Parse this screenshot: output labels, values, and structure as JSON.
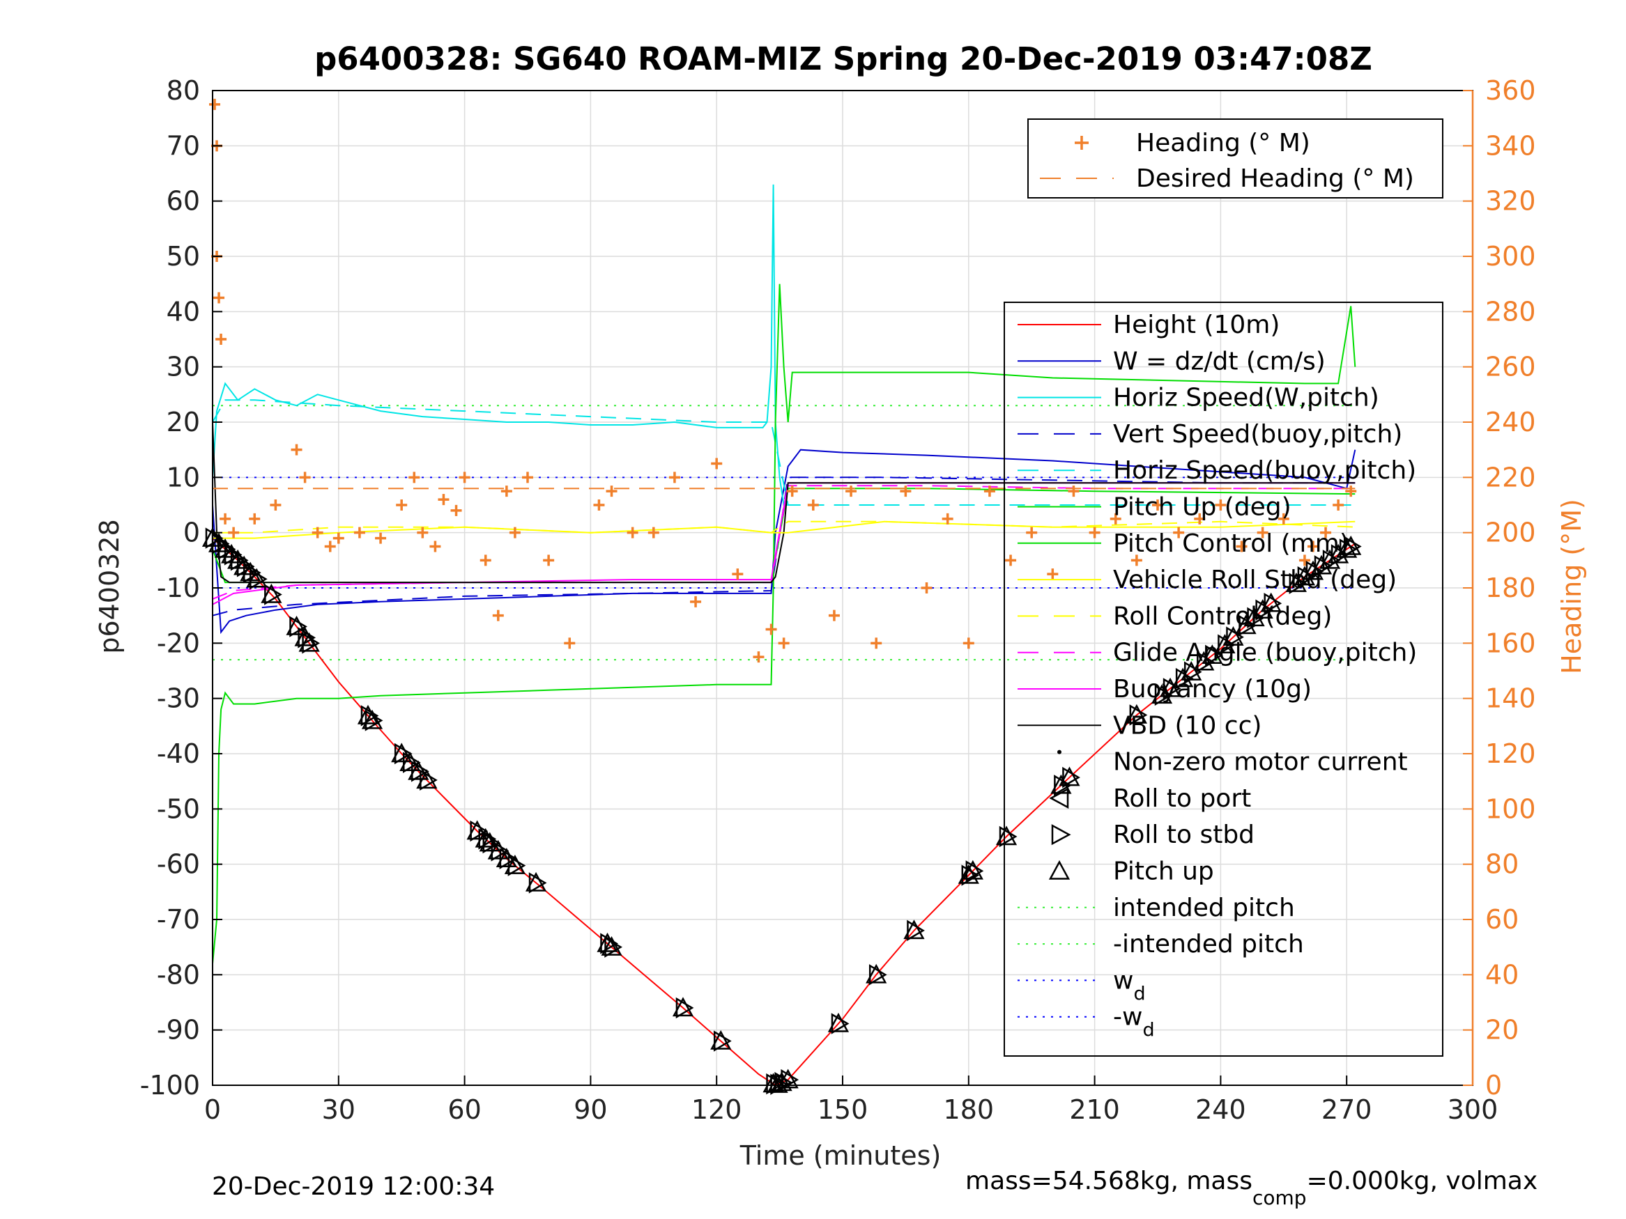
{
  "chart_data": {
    "type": "line",
    "title": "p6400328: SG640 ROAM-MIZ Spring 20-Dec-2019 03:47:08Z",
    "xlabel": "Time (minutes)",
    "ylabel": "p6400328",
    "y2label": "Heading (°M)",
    "xlim": [
      0,
      300
    ],
    "ylim": [
      -100,
      80
    ],
    "y2lim": [
      0,
      360
    ],
    "xticks": [
      "0",
      "30",
      "60",
      "90",
      "120",
      "150",
      "180",
      "210",
      "240",
      "270",
      "300"
    ],
    "yticks": [
      "-100",
      "-90",
      "-80",
      "-70",
      "-60",
      "-50",
      "-40",
      "-30",
      "-20",
      "-10",
      "0",
      "10",
      "20",
      "30",
      "40",
      "50",
      "60",
      "70",
      "80"
    ],
    "y2ticks": [
      "0",
      "20",
      "40",
      "60",
      "80",
      "100",
      "120",
      "140",
      "160",
      "180",
      "200",
      "220",
      "240",
      "260",
      "280",
      "300",
      "320",
      "340",
      "360"
    ],
    "grid": true,
    "colors": {
      "heading": "#f07f2a",
      "height": "#ff0000",
      "w": "#0000cc",
      "horiz_speed": "#00e5e5",
      "pitch_control": "#00dd00",
      "roll": "#ffff00",
      "glide": "#ff00ff",
      "vbd": "#000000",
      "intended_pitch": "#33ee33",
      "wd": "#0000ff"
    },
    "legend_top": {
      "placement": "top-right",
      "entries": [
        "Heading (° M)",
        "Desired Heading (° M)"
      ]
    },
    "legend_main": {
      "placement": "right",
      "entries": [
        "Height (10m)",
        "W = dz/dt (cm/s)",
        "Horiz Speed(W,pitch)",
        "Vert Speed(buoy,pitch)",
        "Horiz Speed(buoy,pitch)",
        "Pitch Up (deg)",
        "Pitch Control (mm)",
        "Vehicle Roll Stbd (deg)",
        "Roll Control (deg)",
        "Glide Angle (buoy,pitch)",
        "Buoyancy (10g)",
        "VBD (10 cc)",
        "Non-zero motor current",
        "Roll to port",
        "Roll to stbd",
        "Pitch up",
        "intended pitch",
        "-intended pitch",
        "w",
        "-w"
      ],
      "subscript_d": "d"
    },
    "series": [
      {
        "name": "Height (10m)",
        "x": [
          0,
          3,
          6,
          10,
          15,
          22,
          30,
          38,
          45,
          50,
          63,
          70,
          78,
          95,
          112,
          121,
          130,
          134,
          137,
          150,
          158,
          167,
          180,
          189,
          203,
          220,
          230,
          240,
          250,
          260,
          266,
          272
        ],
        "y": [
          -1,
          -3,
          -5,
          -8,
          -12,
          -19,
          -27,
          -34,
          -40,
          -44,
          -54,
          -59,
          -64,
          -75,
          -86,
          -92,
          -98,
          -100,
          -99,
          -88,
          -80,
          -72,
          -62,
          -55,
          -45,
          -33,
          -27,
          -21,
          -14,
          -8,
          -5,
          -2
        ]
      },
      {
        "name": "W = dz/dt (cm/s)",
        "x": [
          0,
          2,
          4,
          8,
          15,
          25,
          40,
          60,
          80,
          100,
          120,
          133,
          134,
          137,
          140,
          150,
          170,
          200,
          230,
          260,
          270,
          272
        ],
        "y": [
          5,
          -18,
          -16,
          -15,
          -14,
          -13,
          -12.5,
          -12,
          -11.5,
          -11,
          -11,
          -11,
          0,
          12,
          15,
          14.5,
          14,
          13,
          11.5,
          10,
          8,
          15
        ]
      },
      {
        "name": "Vert Speed(buoy,pitch)",
        "x": [
          0,
          5,
          20,
          60,
          100,
          133,
          137,
          160,
          200,
          240,
          272
        ],
        "y": [
          -15,
          -14,
          -13,
          -11.5,
          -11,
          -10.5,
          10,
          10,
          9.5,
          9,
          9
        ]
      },
      {
        "name": "Horiz Speed(W,pitch)",
        "x": [
          0,
          1,
          3,
          6,
          10,
          15,
          20,
          25,
          30,
          40,
          50,
          60,
          70,
          80,
          90,
          100,
          110,
          120,
          128,
          131,
          132,
          133,
          133.5,
          134,
          135,
          136,
          138,
          140
        ],
        "y": [
          10,
          22,
          27,
          24,
          26,
          24,
          23,
          25,
          24,
          22,
          21,
          20.5,
          20,
          20,
          19.5,
          19.5,
          20,
          19,
          19,
          19,
          20,
          30,
          63,
          20,
          10,
          5,
          5,
          5
        ]
      },
      {
        "name": "Horiz Speed(buoy,pitch)",
        "x": [
          0,
          3,
          10,
          30,
          60,
          90,
          120,
          133,
          137,
          170,
          200,
          240,
          272
        ],
        "y": [
          20,
          24,
          24,
          23,
          22,
          21,
          20,
          20,
          5,
          5,
          5,
          5,
          5
        ]
      },
      {
        "name": "Pitch Control (mm)",
        "x": [
          0,
          1,
          1.5,
          2,
          3,
          5,
          10,
          20,
          30,
          40,
          60,
          80,
          100,
          120,
          130,
          133,
          133.5,
          134,
          135,
          136,
          137,
          138,
          140,
          160,
          180,
          200,
          230,
          260,
          268,
          271,
          272
        ],
        "y": [
          -78,
          -70,
          -40,
          -32,
          -29,
          -31,
          -31,
          -30,
          -30,
          -29.5,
          -29,
          -28.5,
          -28,
          -27.5,
          -27.5,
          -27.5,
          -10,
          20,
          45,
          30,
          20,
          29,
          29,
          29,
          29,
          28,
          27.5,
          27,
          27,
          41,
          30
        ]
      },
      {
        "name": "Pitch Up (deg)",
        "x": [
          0,
          3,
          30,
          60,
          100,
          133,
          137,
          170,
          210,
          272
        ],
        "y": [
          -3,
          -9,
          -9,
          -9,
          -9,
          -9,
          8,
          8,
          7.5,
          7
        ]
      },
      {
        "name": "Glide Angle (buoy,pitch)",
        "x": [
          0,
          5,
          20,
          60,
          100,
          133,
          137,
          170,
          210,
          272
        ],
        "y": [
          -12,
          -10.5,
          -9.5,
          -9,
          -9,
          -9,
          8.5,
          8.5,
          8,
          8
        ]
      },
      {
        "name": "Buoyancy (10g)",
        "x": [
          0,
          5,
          20,
          60,
          100,
          133,
          137,
          170,
          210,
          272
        ],
        "y": [
          -13,
          -11,
          -9.5,
          -9,
          -8.5,
          -8.5,
          9,
          9,
          9,
          9
        ]
      },
      {
        "name": "VBD (10 cc)",
        "x": [
          0,
          1,
          2,
          4,
          133,
          134,
          136,
          137,
          272
        ],
        "y": [
          20,
          0,
          -8,
          -9,
          -9,
          -8,
          0,
          9,
          9
        ]
      },
      {
        "name": "Vehicle Roll Stbd (deg)",
        "x": [
          0,
          10,
          30,
          60,
          90,
          120,
          133,
          137,
          160,
          200,
          240,
          272
        ],
        "y": [
          -1,
          -1,
          0,
          1,
          0,
          1,
          0,
          0,
          2,
          1,
          1,
          2
        ]
      },
      {
        "name": "Roll Control (deg)",
        "x": [
          0,
          10,
          30,
          60,
          90,
          120,
          133,
          137,
          160,
          200,
          240,
          272
        ],
        "y": [
          0,
          0,
          1,
          1,
          0,
          1,
          0,
          2,
          2,
          1,
          2,
          1
        ]
      },
      {
        "name": "Heading (° M)",
        "x": [
          0.5,
          1,
          1,
          1.5,
          2,
          3,
          5,
          10,
          15,
          20,
          22,
          25,
          28,
          30,
          35,
          40,
          45,
          48,
          50,
          53,
          55,
          58,
          60,
          65,
          68,
          70,
          72,
          75,
          80,
          85,
          92,
          95,
          100,
          105,
          110,
          115,
          120,
          125,
          130,
          133,
          136,
          138,
          143,
          148,
          152,
          158,
          165,
          170,
          175,
          180,
          185,
          190,
          195,
          200,
          205,
          210,
          215,
          220,
          225,
          230,
          235,
          240,
          245,
          250,
          255,
          260,
          262,
          265,
          268,
          271
        ],
        "y": [
          355,
          340,
          300,
          285,
          270,
          205,
          200,
          205,
          210,
          230,
          220,
          200,
          195,
          198,
          200,
          198,
          210,
          220,
          200,
          195,
          212,
          208,
          220,
          190,
          170,
          215,
          200,
          220,
          190,
          160,
          210,
          215,
          200,
          200,
          220,
          175,
          225,
          185,
          155,
          165,
          160,
          215,
          210,
          170,
          215,
          160,
          215,
          180,
          205,
          160,
          215,
          190,
          200,
          185,
          215,
          200,
          205,
          190,
          210,
          200,
          205,
          210,
          195,
          200,
          205,
          190,
          195,
          200,
          210,
          215
        ]
      },
      {
        "name": "Desired Heading (° M)",
        "x": [
          0,
          272
        ],
        "y": [
          216,
          216
        ]
      }
    ],
    "intended_pitch": 23,
    "wd": 10,
    "markers": {
      "height_times": [
        0,
        1.5,
        3,
        4.5,
        6,
        7.5,
        9,
        10.5,
        14,
        20,
        22,
        23,
        37,
        38,
        45,
        47,
        49,
        51,
        63,
        65,
        66,
        68,
        70,
        72,
        77,
        94,
        95,
        112,
        121,
        133.5,
        134.5,
        135.5,
        137,
        149,
        158,
        167,
        180,
        181,
        189,
        202,
        204,
        220,
        226,
        228,
        231,
        233,
        236,
        238,
        241,
        243,
        246,
        248,
        250,
        252,
        258,
        260,
        262,
        264,
        266,
        268,
        270,
        271
      ]
    },
    "footer_left": "20-Dec-2019 12:00:34",
    "footer_right_1": "mass=54.568kg, mass",
    "footer_right_sub": "comp",
    "footer_right_2": "=0.000kg, volmax"
  }
}
